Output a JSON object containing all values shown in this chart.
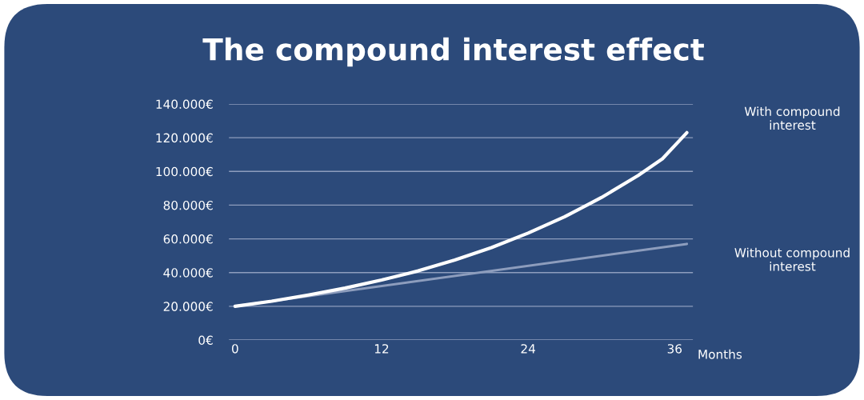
{
  "chart_data": {
    "type": "line",
    "title": "The compound interest effect",
    "xlabel": "Months",
    "xlim": [
      -0.5,
      37.5
    ],
    "xticks": [
      0,
      12,
      24,
      36
    ],
    "ylim": [
      0,
      140000
    ],
    "yticks": [
      {
        "value": 0,
        "label": "0€"
      },
      {
        "value": 20000,
        "label": "20.000€"
      },
      {
        "value": 40000,
        "label": "40.000€"
      },
      {
        "value": 60000,
        "label": "60.000€"
      },
      {
        "value": 80000,
        "label": "80.000€"
      },
      {
        "value": 100000,
        "label": "100.000€"
      },
      {
        "value": 120000,
        "label": "120.000€"
      },
      {
        "value": 140000,
        "label": "140.000€"
      }
    ],
    "grid": "y",
    "legend": false,
    "marker": "none",
    "line_style": "solid",
    "series": [
      {
        "name": "With compound\ninterest",
        "color": "#ffffff",
        "x": [
          0,
          3,
          6,
          9,
          12,
          15,
          18,
          21,
          24,
          27,
          30,
          33,
          35,
          37
        ],
        "values": [
          20000,
          23000,
          26700,
          30800,
          35600,
          41000,
          47500,
          54800,
          63400,
          73100,
          84500,
          97500,
          107500,
          123000
        ]
      },
      {
        "name": "Without compound\ninterest",
        "color": "#8d9dbd",
        "x": [
          0,
          37
        ],
        "values": [
          20000,
          57000
        ]
      }
    ]
  }
}
